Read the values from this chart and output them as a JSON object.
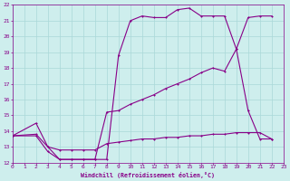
{
  "xlabel": "Windchill (Refroidissement éolien,°C)",
  "background_color": "#ceeeed",
  "grid_color": "#aad8d8",
  "line_color": "#880088",
  "xlim": [
    0,
    23
  ],
  "ylim": [
    12,
    22
  ],
  "xticks": [
    0,
    1,
    2,
    3,
    4,
    5,
    6,
    7,
    8,
    9,
    10,
    11,
    12,
    13,
    14,
    15,
    16,
    17,
    18,
    19,
    20,
    21,
    22,
    23
  ],
  "yticks": [
    12,
    13,
    14,
    15,
    16,
    17,
    18,
    19,
    20,
    21,
    22
  ],
  "series1_x": [
    0,
    2,
    3,
    4,
    5,
    6,
    7,
    8,
    9,
    10,
    11,
    12,
    13,
    14,
    15,
    16,
    17,
    18,
    19,
    20,
    21,
    22
  ],
  "series1_y": [
    13.7,
    14.5,
    13.0,
    12.2,
    12.2,
    12.2,
    12.2,
    12.2,
    18.8,
    21.0,
    21.3,
    21.2,
    21.2,
    21.7,
    21.8,
    21.3,
    21.3,
    21.3,
    19.2,
    21.2,
    21.3,
    21.3
  ],
  "series2_x": [
    0,
    2,
    3,
    4,
    5,
    6,
    7,
    8,
    9,
    10,
    11,
    12,
    13,
    14,
    15,
    16,
    17,
    18,
    19,
    20,
    21,
    22
  ],
  "series2_y": [
    13.7,
    13.7,
    12.7,
    12.2,
    12.2,
    12.2,
    12.2,
    15.2,
    15.3,
    15.7,
    16.0,
    16.3,
    16.7,
    17.0,
    17.3,
    17.7,
    18.0,
    17.8,
    19.2,
    15.3,
    13.5,
    13.5
  ],
  "series3_x": [
    0,
    2,
    3,
    4,
    5,
    6,
    7,
    8,
    9,
    10,
    11,
    12,
    13,
    14,
    15,
    16,
    17,
    18,
    19,
    20,
    21,
    22
  ],
  "series3_y": [
    13.7,
    13.8,
    13.0,
    12.8,
    12.8,
    12.8,
    12.8,
    13.2,
    13.3,
    13.4,
    13.5,
    13.5,
    13.6,
    13.6,
    13.7,
    13.7,
    13.8,
    13.8,
    13.9,
    13.9,
    13.9,
    13.5
  ]
}
